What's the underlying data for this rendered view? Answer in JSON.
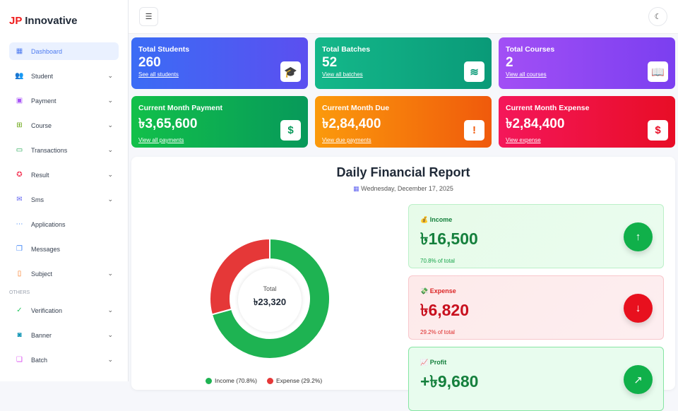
{
  "brand": {
    "prefix": "JP",
    "name": " Innovative"
  },
  "sidebar": {
    "items": [
      {
        "label": "Dashboard",
        "icon": "grid-icon",
        "color": "#4f7cf0",
        "chevron": false
      },
      {
        "label": "Student",
        "icon": "users-icon",
        "color": "#22c55e",
        "chevron": true
      },
      {
        "label": "Payment",
        "icon": "wallet-icon",
        "color": "#a855f7",
        "chevron": true
      },
      {
        "label": "Course",
        "icon": "book-plus-icon",
        "color": "#65a30d",
        "chevron": true
      },
      {
        "label": "Transactions",
        "icon": "banknote-icon",
        "color": "#16a34a",
        "chevron": true
      },
      {
        "label": "Result",
        "icon": "award-icon",
        "color": "#f43f5e",
        "chevron": true
      },
      {
        "label": "Sms",
        "icon": "mail-icon",
        "color": "#6366f1",
        "chevron": true
      },
      {
        "label": "Applications",
        "icon": "dots-box-icon",
        "color": "#3b82f6",
        "chevron": false
      },
      {
        "label": "Messages",
        "icon": "chat-icon",
        "color": "#3b82f6",
        "chevron": false
      },
      {
        "label": "Subject",
        "icon": "notebook-icon",
        "color": "#f97316",
        "chevron": true
      }
    ],
    "section": "OTHERS",
    "others": [
      {
        "label": "Verification",
        "icon": "check-circle-icon",
        "color": "#22c55e",
        "chevron": true
      },
      {
        "label": "Banner",
        "icon": "camera-icon",
        "color": "#0891b2",
        "chevron": true
      },
      {
        "label": "Batch",
        "icon": "open-book-icon",
        "color": "#d946ef",
        "chevron": true
      }
    ]
  },
  "header": {
    "menu_icon": "menu-icon",
    "theme_icon": "moon-icon"
  },
  "cards": [
    {
      "title": "Total Students",
      "value": "260",
      "link": "See all students",
      "icon": "graduation-cap-icon",
      "glyph": "🎓"
    },
    {
      "title": "Total Batches",
      "value": "52",
      "link": "View all batches",
      "icon": "layers-icon",
      "glyph": "≋"
    },
    {
      "title": "Total Courses",
      "value": "2",
      "link": "View all courses",
      "icon": "book-icon",
      "glyph": "📖"
    },
    {
      "title": "Current Month Payment",
      "value": "৳3,65,600",
      "link": "View all payments",
      "icon": "dollar-circle-icon",
      "glyph": "$"
    },
    {
      "title": "Current Month Due",
      "value": "৳2,84,400",
      "link": "View due payments",
      "icon": "alert-circle-icon",
      "glyph": "!"
    },
    {
      "title": "Current Month Expense",
      "value": "৳2,84,400",
      "link": "View expense",
      "icon": "receipt-icon",
      "glyph": "$"
    }
  ],
  "report": {
    "title": "Daily Financial Report",
    "date": "Wednesday, December 17, 2025",
    "total_label": "Total",
    "total": "৳23,320",
    "income": {
      "label": "Income",
      "value": "৳16,500",
      "pct": "70.8% of total",
      "emoji": "💰"
    },
    "expense": {
      "label": "Expense",
      "value": "৳6,820",
      "pct": "29.2% of total",
      "emoji": "💸"
    },
    "profit": {
      "label": "Profit",
      "value": "+৳9,680",
      "emoji": "📈"
    }
  },
  "chart_data": {
    "type": "pie",
    "donut": true,
    "categories": [
      "Income",
      "Expense"
    ],
    "values": [
      16500,
      6820
    ],
    "colors": [
      "#1eb352",
      "#e53838"
    ],
    "legend": [
      "Income (70.8%)",
      "Expense (29.2%)"
    ],
    "legend_position": "bottom"
  }
}
